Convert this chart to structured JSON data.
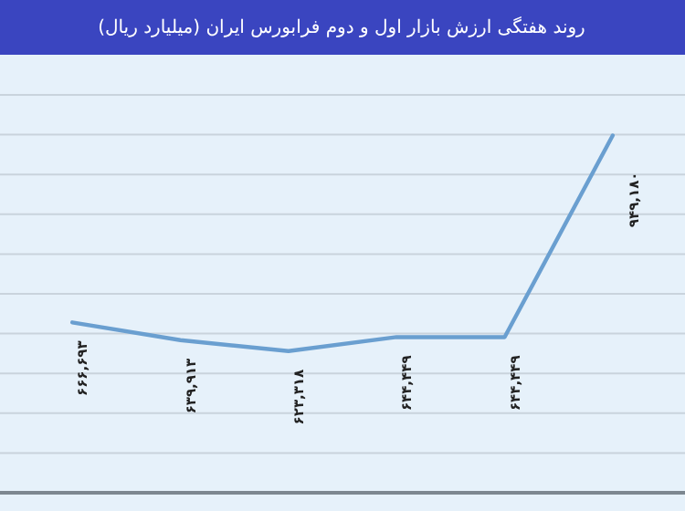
{
  "chart_data": {
    "type": "line",
    "title": "روند هفتگی ارزش بازار اول و دوم فرابورس  ایران (میلیارد ریال)",
    "categories": [
      null,
      null,
      null,
      null,
      null,
      null
    ],
    "series": [
      {
        "color": "#6a9fd0",
        "values": [
          666693,
          639913,
          623318,
          644449,
          644449,
          949180
        ],
        "value_labels": [
          "۶۶۶,۶۹۳",
          "۶۳۹,۹۱۳",
          "۶۲۳,۳۱۸",
          "۶۴۴,۴۴۹",
          "۶۴۴,۴۴۹",
          "۹۴۹,۱۸۰"
        ]
      }
    ],
    "grid": "y",
    "marker": "none",
    "line_style": "solid"
  }
}
